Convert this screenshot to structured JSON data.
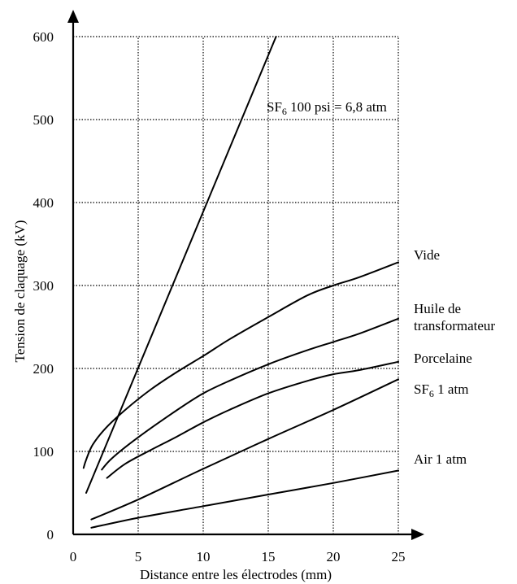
{
  "chart_data": {
    "type": "line",
    "title": "",
    "xlabel": "Distance entre les électrodes (mm)",
    "ylabel": "Tension de claquage (kV)",
    "xlim": [
      0,
      25
    ],
    "ylim": [
      0,
      600
    ],
    "x_ticks": [
      "0",
      "5",
      "10",
      "15",
      "20",
      "25"
    ],
    "y_ticks": [
      "0",
      "100",
      "200",
      "300",
      "400",
      "500",
      "600"
    ],
    "grid": true,
    "series": [
      {
        "id": "sf6-100psi",
        "label_base": "SF",
        "label_sub": "6",
        "label_rest": " 100 psi = 6,8 atm",
        "x": [
          1,
          15.6
        ],
        "y": [
          50,
          600
        ]
      },
      {
        "id": "vide",
        "label": "Vide",
        "x": [
          0.8,
          1.0,
          1.5,
          2.5,
          4,
          6,
          8,
          10,
          12,
          15,
          18,
          20,
          22,
          25
        ],
        "y": [
          80,
          90,
          108,
          128,
          150,
          175,
          196,
          215,
          235,
          262,
          288,
          300,
          310,
          328
        ]
      },
      {
        "id": "huile",
        "label_lines": [
          "Huile de",
          "transformateur"
        ],
        "x": [
          2.2,
          3,
          5,
          8,
          10,
          12,
          15,
          18,
          20,
          22,
          25
        ],
        "y": [
          78,
          92,
          117,
          150,
          170,
          185,
          205,
          222,
          232,
          242,
          260
        ]
      },
      {
        "id": "porcelaine",
        "label": "Porcelaine",
        "x": [
          2.6,
          4,
          6,
          8,
          10,
          12,
          15,
          18,
          20,
          22,
          25
        ],
        "y": [
          68,
          85,
          102,
          118,
          135,
          150,
          170,
          185,
          193,
          198,
          208
        ]
      },
      {
        "id": "sf6-1atm",
        "label_base": "SF",
        "label_sub": "6",
        "label_rest": " 1 atm",
        "x": [
          1.4,
          5,
          10,
          15,
          20,
          25
        ],
        "y": [
          18,
          42,
          79,
          115,
          150,
          187
        ]
      },
      {
        "id": "air",
        "label": "Air 1 atm",
        "x": [
          1.4,
          5,
          10,
          15,
          20,
          25
        ],
        "y": [
          8,
          20,
          34,
          48,
          62,
          77
        ]
      }
    ]
  }
}
